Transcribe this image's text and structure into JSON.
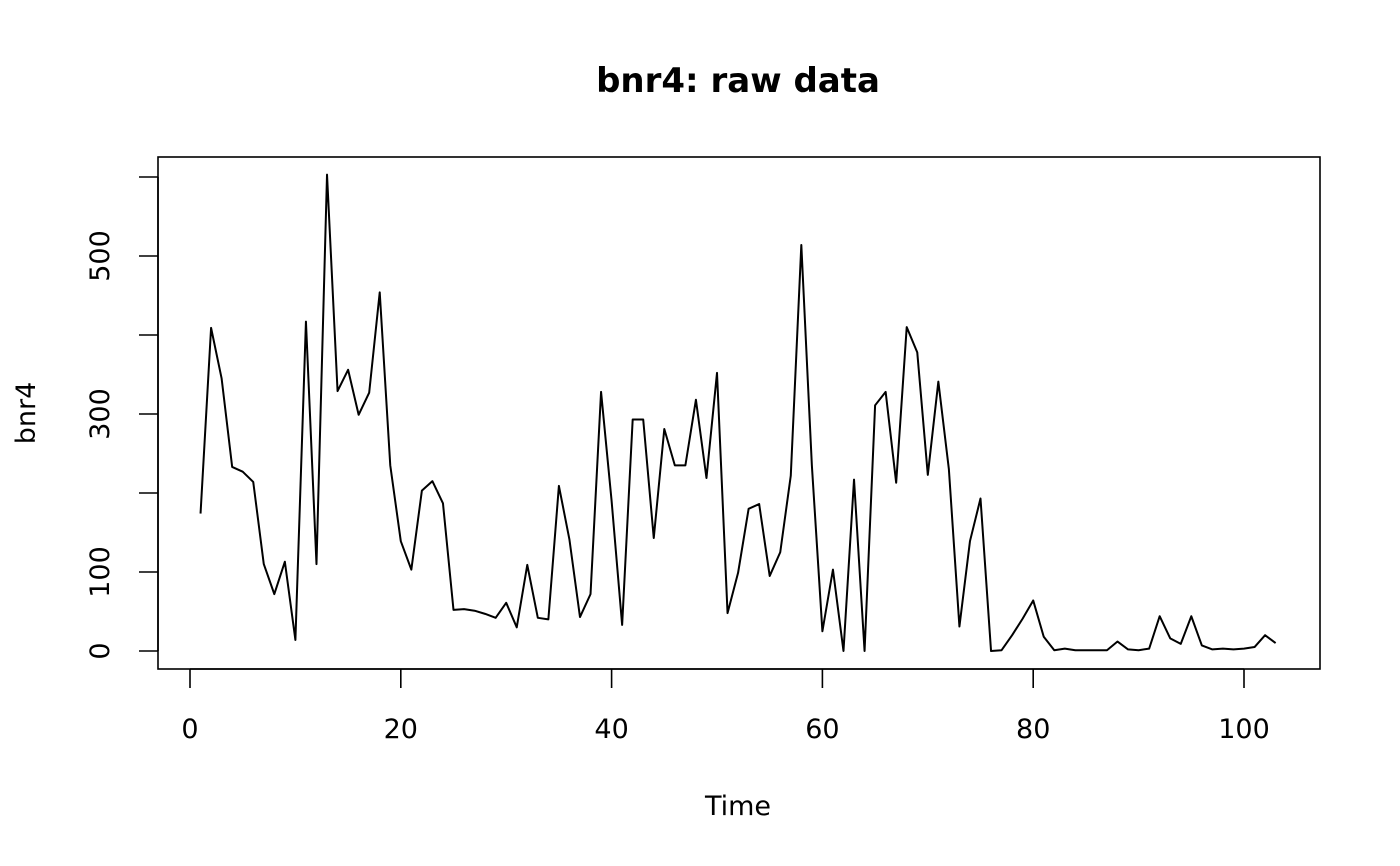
{
  "chart_data": {
    "type": "line",
    "title": "bnr4: raw data",
    "xlabel": "Time",
    "ylabel": "bnr4",
    "xlim": [
      0,
      103
    ],
    "ylim": [
      0,
      600
    ],
    "x_ticks": [
      0,
      20,
      40,
      60,
      80,
      100
    ],
    "y_ticks": [
      0,
      100,
      200,
      300,
      400,
      500,
      600
    ],
    "y_tick_labels": [
      "0",
      "100",
      "",
      "300",
      "",
      "500",
      ""
    ],
    "grid": false,
    "x": [
      1,
      2,
      3,
      4,
      5,
      6,
      7,
      8,
      9,
      10,
      11,
      12,
      13,
      14,
      15,
      16,
      17,
      18,
      19,
      20,
      21,
      22,
      23,
      24,
      25,
      26,
      27,
      28,
      29,
      30,
      31,
      32,
      33,
      34,
      35,
      36,
      37,
      38,
      39,
      40,
      41,
      42,
      43,
      44,
      45,
      46,
      47,
      48,
      49,
      50,
      51,
      52,
      53,
      54,
      55,
      56,
      57,
      58,
      59,
      60,
      61,
      62,
      63,
      64,
      65,
      66,
      67,
      68,
      69,
      70,
      71,
      72,
      73,
      74,
      75,
      76,
      77,
      78,
      79,
      80,
      81,
      82,
      83,
      84,
      85,
      86,
      87,
      88,
      89,
      90,
      91,
      92,
      93,
      94,
      95,
      96,
      97,
      98,
      99,
      100,
      101,
      102,
      103
    ],
    "values": [
      174,
      409,
      345,
      233,
      227,
      214,
      110,
      72,
      113,
      14,
      417,
      110,
      603,
      329,
      356,
      299,
      327,
      454,
      235,
      139,
      103,
      203,
      215,
      187,
      52,
      53,
      51,
      47,
      42,
      61,
      30,
      109,
      42,
      40,
      209,
      141,
      43,
      72,
      328,
      190,
      33,
      293,
      293,
      143,
      281,
      235,
      235,
      318,
      219,
      352,
      48,
      99,
      180,
      186,
      95,
      125,
      222,
      514,
      235,
      25,
      103,
      0,
      217,
      0,
      311,
      328,
      213,
      410,
      378,
      223,
      341,
      230,
      31,
      139,
      193,
      0,
      1,
      20,
      41,
      64,
      18,
      1,
      3,
      1,
      1,
      1,
      1,
      12,
      2,
      1,
      3,
      44,
      16,
      9,
      44,
      7,
      2,
      3,
      2,
      3,
      5,
      20,
      10
    ]
  }
}
